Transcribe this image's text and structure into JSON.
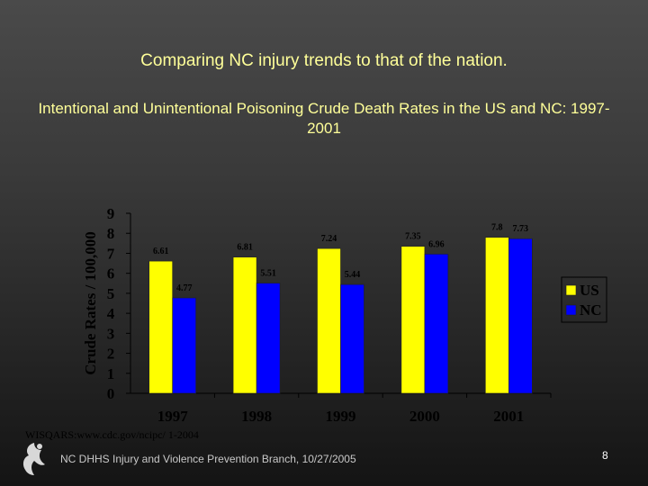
{
  "slide": {
    "title": "Comparing NC injury trends to that of the nation.",
    "source": "WISQARS:www.cdc.gov/ncipc/   1-2004",
    "footer": "NC DHHS Injury and Violence Prevention Branch, 10/27/2005",
    "page_number": "8"
  },
  "chart_data": {
    "type": "bar",
    "title": "Intentional and Unintentional Poisoning Crude Death Rates in the US and NC: 1997-2001",
    "ylabel": "Crude Rates / 100,000",
    "xlabel": "",
    "categories": [
      "1997",
      "1998",
      "1999",
      "2000",
      "2001"
    ],
    "series": [
      {
        "name": "US",
        "color": "#ffff00",
        "values": [
          6.61,
          6.81,
          7.24,
          7.35,
          7.8
        ],
        "labels": [
          "6.61",
          "6.81",
          "7.24",
          "7.35",
          "7.8"
        ]
      },
      {
        "name": "NC",
        "color": "#0000ff",
        "values": [
          4.77,
          5.51,
          5.44,
          6.96,
          7.73
        ],
        "labels": [
          "4.77",
          "5.51",
          "5.44",
          "6.96",
          "7.73"
        ]
      }
    ],
    "ylim": [
      0,
      9
    ],
    "yticks": [
      "0",
      "1",
      "2",
      "3",
      "4",
      "5",
      "6",
      "7",
      "8",
      "9"
    ],
    "grid": false,
    "legend": "right"
  }
}
